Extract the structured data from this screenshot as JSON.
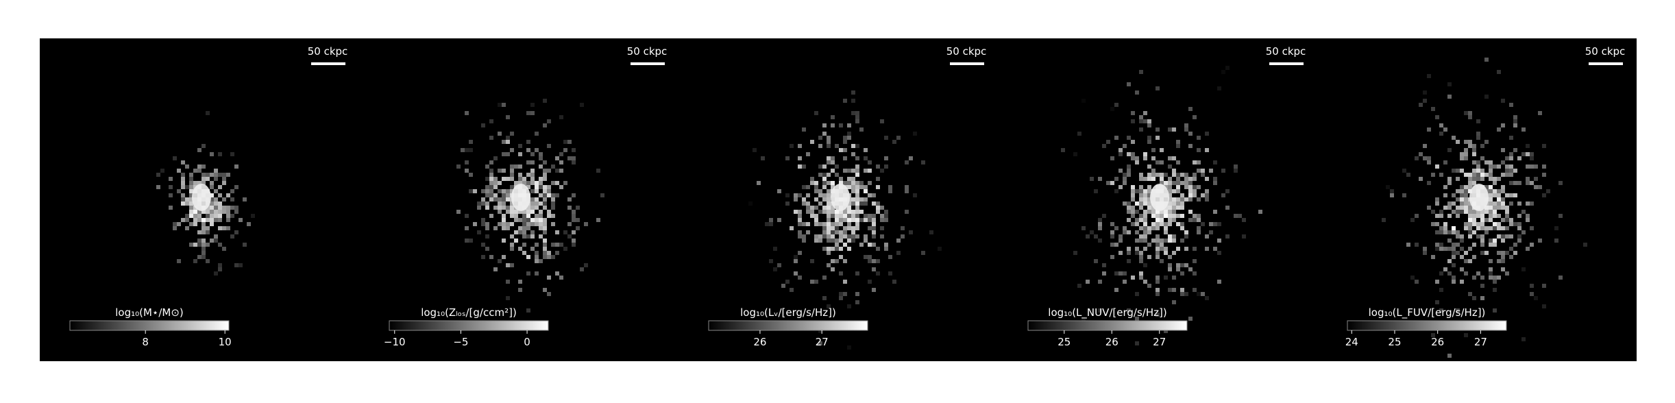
{
  "chart_data": [
    {
      "type": "image",
      "scale_bar": "50 ckpc",
      "colorbar_label": "log₁₀(M⋆/M⊙)",
      "clim": [
        6.1,
        10.1
      ],
      "ticks": [
        8,
        10
      ],
      "spread": 0.6
    },
    {
      "type": "image",
      "scale_bar": "50 ckpc",
      "colorbar_label": "log₁₀(Zₗₒₛ/[g/ccm²])",
      "clim": [
        -10.4,
        1.6
      ],
      "ticks": [
        {
          "value": -10,
          "label": "−10"
        },
        {
          "value": -5,
          "label": "−5"
        },
        0
      ],
      "spread": 1.0
    },
    {
      "type": "image",
      "scale_bar": "50 ckpc",
      "colorbar_label": "log₁₀(Lᵥ/[erg/s/Hz])",
      "clim": [
        25.17,
        27.74
      ],
      "ticks": [
        26,
        27
      ],
      "spread": 1.1
    },
    {
      "type": "image",
      "scale_bar": "50 ckpc",
      "colorbar_label": "log₁₀(L_NUV/[erg/s/Hz])",
      "clim": [
        24.24,
        27.58
      ],
      "ticks": [
        25,
        26,
        27
      ],
      "spread": 1.2
    },
    {
      "type": "image",
      "scale_bar": "50 ckpc",
      "colorbar_label": "log₁₀(L_FUV/[erg/s/Hz])",
      "clim": [
        23.9,
        27.6
      ],
      "ticks": [
        24,
        25,
        26,
        27
      ],
      "spread": 1.2
    }
  ]
}
